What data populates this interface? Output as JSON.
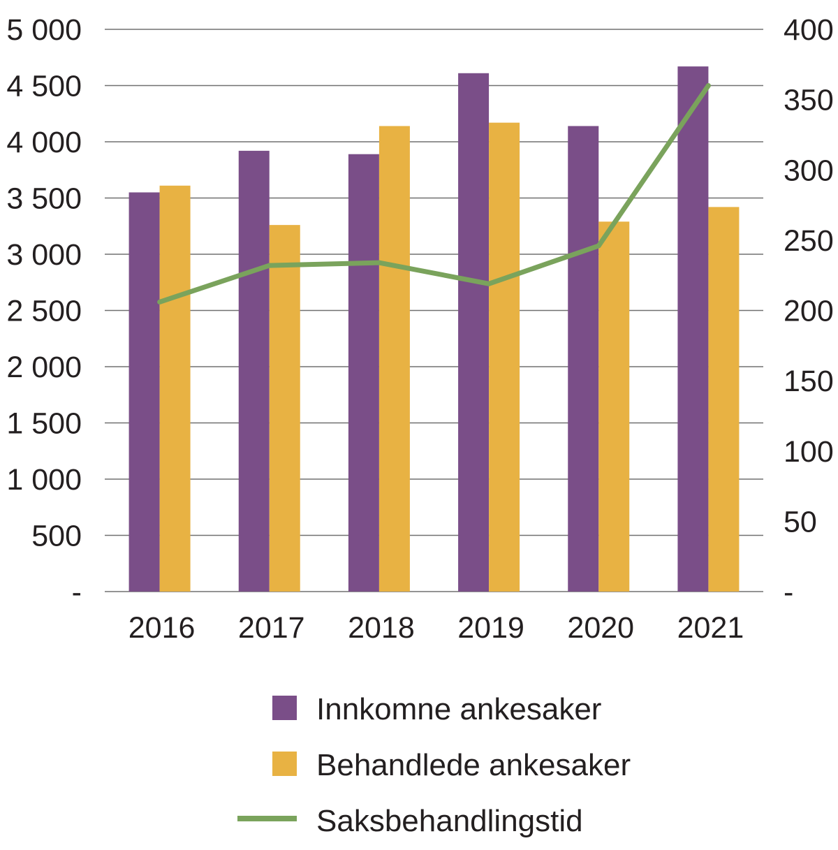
{
  "chart_data": {
    "type": "bar",
    "categories": [
      "2016",
      "2017",
      "2018",
      "2019",
      "2020",
      "2021"
    ],
    "series": [
      {
        "name": "Innkomne ankesaker",
        "type": "bar",
        "axis": "left",
        "color": "#7A4E88",
        "values": [
          3550,
          3920,
          3890,
          4610,
          4140,
          4670
        ]
      },
      {
        "name": "Behandlede ankesaker",
        "type": "bar",
        "axis": "left",
        "color": "#E8B243",
        "values": [
          3610,
          3260,
          4140,
          4170,
          3290,
          3420
        ]
      },
      {
        "name": "Saksbehandlingstid",
        "type": "line",
        "axis": "right",
        "color": "#7AA35C",
        "values": [
          206,
          232,
          234,
          219,
          246,
          360
        ]
      }
    ],
    "y_left": {
      "ylim": [
        0,
        5000
      ],
      "ticks": [
        0,
        500,
        1000,
        1500,
        2000,
        2500,
        3000,
        3500,
        4000,
        4500,
        5000
      ],
      "tick_labels": [
        "-",
        "500",
        "1 000",
        "1 500",
        "2 000",
        "2 500",
        "3 000",
        "3 500",
        "4 000",
        "4 500",
        "5 000"
      ]
    },
    "y_right": {
      "ylim": [
        0,
        400
      ],
      "ticks": [
        0,
        50,
        100,
        150,
        200,
        250,
        300,
        350,
        400
      ],
      "tick_labels": [
        "-",
        "50",
        "100",
        "150",
        "200",
        "250",
        "300",
        "350",
        "400"
      ]
    },
    "grid": true,
    "legend_position": "bottom"
  }
}
